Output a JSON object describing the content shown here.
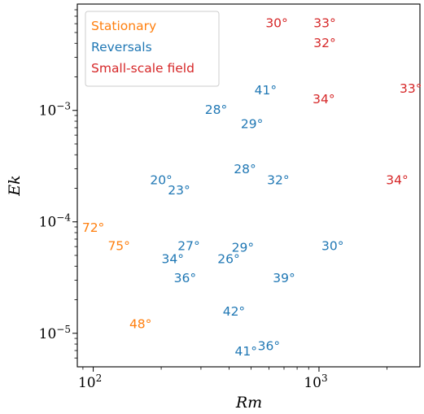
{
  "chart_data": {
    "type": "scatter",
    "title": "",
    "xlabel": "Rm",
    "ylabel": "Ek",
    "xscale": "log",
    "yscale": "log",
    "xlim": [
      85,
      2800
    ],
    "ylim": [
      5e-06,
      0.009
    ],
    "xticks": [
      {
        "value": 100,
        "base": "10",
        "exp": "2"
      },
      {
        "value": 1000,
        "base": "10",
        "exp": "3"
      }
    ],
    "yticks": [
      {
        "value": 1e-05,
        "base": "10",
        "exp": "−5"
      },
      {
        "value": 0.0001,
        "base": "10",
        "exp": "−4"
      },
      {
        "value": 0.001,
        "base": "10",
        "exp": "−3"
      }
    ],
    "legend_position": "top-left",
    "grid": false,
    "series": [
      {
        "name": "Stationary",
        "color": "#ff7f0e",
        "points": [
          {
            "x": 100,
            "y": 8.8e-05,
            "label": "72°"
          },
          {
            "x": 130,
            "y": 6e-05,
            "label": "75°"
          },
          {
            "x": 162,
            "y": 1.2e-05,
            "label": "48°"
          }
        ]
      },
      {
        "name": "Reversals",
        "color": "#1f77b4",
        "points": [
          {
            "x": 580,
            "y": 0.0015,
            "label": "41°"
          },
          {
            "x": 350,
            "y": 0.001,
            "label": "28°"
          },
          {
            "x": 505,
            "y": 0.00075,
            "label": "29°"
          },
          {
            "x": 470,
            "y": 0.000295,
            "label": "28°"
          },
          {
            "x": 660,
            "y": 0.000235,
            "label": "32°"
          },
          {
            "x": 200,
            "y": 0.000235,
            "label": "20°"
          },
          {
            "x": 240,
            "y": 0.00019,
            "label": "23°"
          },
          {
            "x": 265,
            "y": 6e-05,
            "label": "27°"
          },
          {
            "x": 225,
            "y": 4.6e-05,
            "label": "34°"
          },
          {
            "x": 398,
            "y": 4.6e-05,
            "label": "26°"
          },
          {
            "x": 460,
            "y": 5.8e-05,
            "label": "29°"
          },
          {
            "x": 1150,
            "y": 6e-05,
            "label": "30°"
          },
          {
            "x": 255,
            "y": 3.1e-05,
            "label": "36°"
          },
          {
            "x": 700,
            "y": 3.1e-05,
            "label": "39°"
          },
          {
            "x": 420,
            "y": 1.55e-05,
            "label": "42°"
          },
          {
            "x": 600,
            "y": 7.6e-06,
            "label": "36°"
          },
          {
            "x": 475,
            "y": 6.8e-06,
            "label": "41°"
          }
        ]
      },
      {
        "name": "Small-scale field",
        "color": "#d62728",
        "points": [
          {
            "x": 650,
            "y": 0.006,
            "label": "30°"
          },
          {
            "x": 1060,
            "y": 0.006,
            "label": "33°"
          },
          {
            "x": 1060,
            "y": 0.004,
            "label": "32°"
          },
          {
            "x": 1050,
            "y": 0.00125,
            "label": "34°"
          },
          {
            "x": 2550,
            "y": 0.00155,
            "label": "33°"
          },
          {
            "x": 2220,
            "y": 0.000235,
            "label": "34°"
          }
        ]
      }
    ]
  }
}
